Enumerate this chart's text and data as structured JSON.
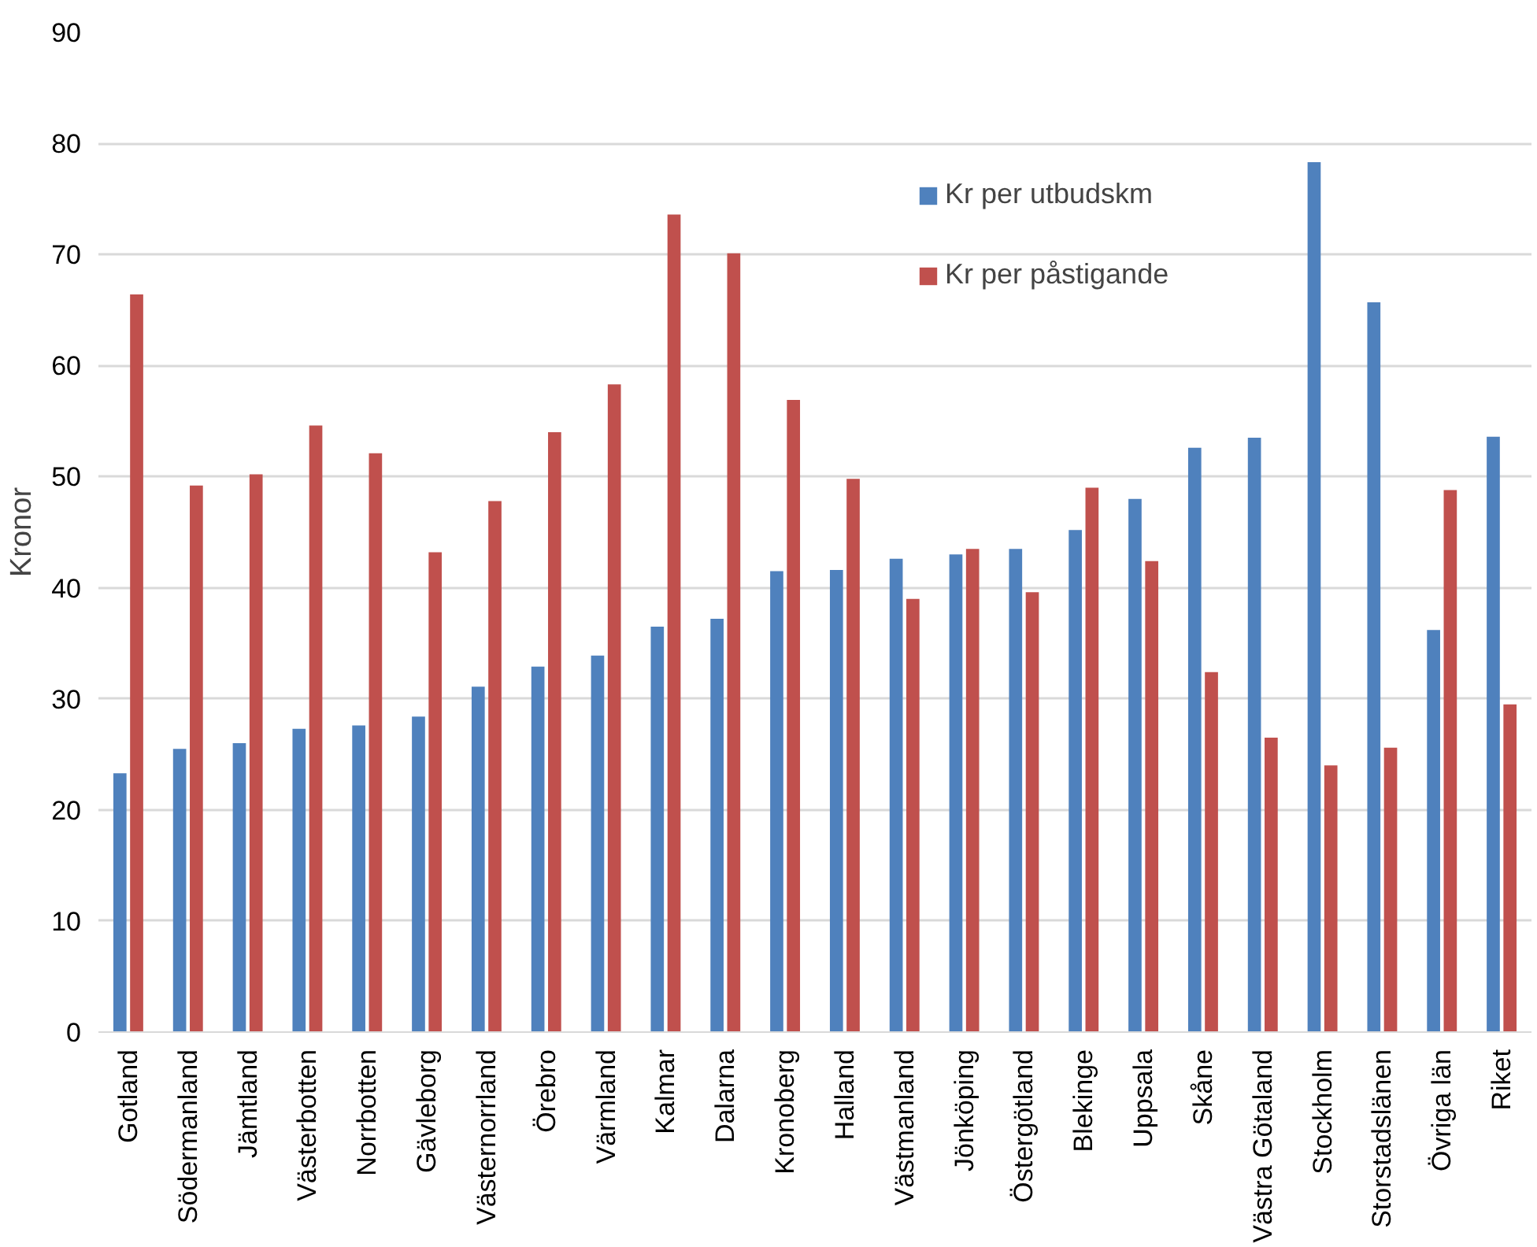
{
  "chart_data": {
    "type": "bar",
    "ylabel": "Kronor",
    "categories": [
      "Gotland",
      "Södermanland",
      "Jämtland",
      "Västerbotten",
      "Norrbotten",
      "Gävleborg",
      "Västernorrland",
      "Örebro",
      "Värmland",
      "Kalmar",
      "Dalarna",
      "Kronoberg",
      "Halland",
      "Västmanland",
      "Jönköping",
      "Östergötland",
      "Blekinge",
      "Uppsala",
      "Skåne",
      "Västra Götaland",
      "Stockholm",
      "Storstadslänen",
      "Övriga län",
      "Riket"
    ],
    "series": [
      {
        "name": "Kr per utbudskm",
        "color": "#4f81bd",
        "values": [
          23.3,
          25.5,
          26,
          27.3,
          27.6,
          28.4,
          31.1,
          32.9,
          33.9,
          36.5,
          37.2,
          41.5,
          41.6,
          42.6,
          43,
          43.5,
          45.2,
          48,
          52.6,
          53.5,
          78.3,
          65.7,
          36.2,
          53.6
        ]
      },
      {
        "name": "Kr per påstigande",
        "color": "#c0504d",
        "values": [
          66.4,
          49.2,
          50.2,
          54.6,
          52.1,
          43.2,
          47.8,
          54,
          58.3,
          73.6,
          70.1,
          56.9,
          49.8,
          39,
          43.5,
          39.6,
          49,
          42.4,
          32.4,
          26.5,
          24,
          25.6,
          48.8,
          29.5
        ]
      }
    ],
    "ylim": [
      0,
      90
    ],
    "yticks": [
      0,
      10,
      20,
      30,
      40,
      50,
      60,
      70,
      80,
      90
    ],
    "grid": "y",
    "legend": "top"
  }
}
